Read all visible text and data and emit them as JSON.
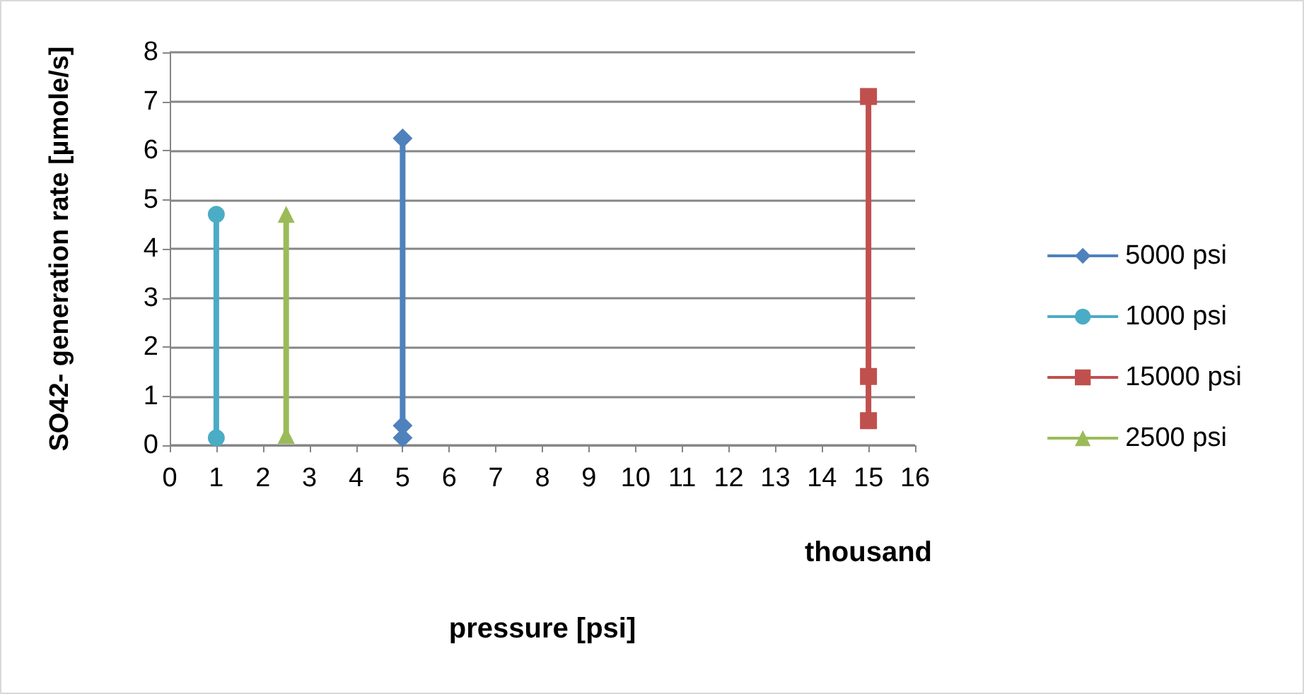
{
  "chart_data": {
    "type": "line",
    "xlabel": "pressure [psi]",
    "ylabel": "SO42- generation rate [µmole/s]",
    "annotations": [
      "thousand"
    ],
    "xlim": [
      0,
      16
    ],
    "xticks": [
      0,
      1,
      2,
      3,
      4,
      5,
      6,
      7,
      8,
      9,
      10,
      11,
      12,
      13,
      14,
      15,
      16
    ],
    "ylim": [
      0,
      8
    ],
    "yticks": [
      0,
      1,
      2,
      3,
      4,
      5,
      6,
      7,
      8
    ],
    "grid": "y",
    "legend": "right",
    "series": [
      {
        "name": "5000 psi",
        "color": "#4f81bd",
        "marker": "diamond",
        "x": [
          5,
          5,
          5
        ],
        "values": [
          6.25,
          0.4,
          0.15
        ]
      },
      {
        "name": "1000 psi",
        "color": "#4bacc6",
        "marker": "circle",
        "x": [
          1,
          1
        ],
        "values": [
          4.7,
          0.15
        ]
      },
      {
        "name": "15000 psi",
        "color": "#c0504d",
        "marker": "square",
        "x": [
          15,
          15,
          15
        ],
        "values": [
          7.1,
          1.4,
          0.5
        ]
      },
      {
        "name": "2500 psi",
        "color": "#9bbb59",
        "marker": "triangle",
        "x": [
          2.5,
          2.5
        ],
        "values": [
          4.7,
          0.2
        ]
      }
    ]
  }
}
